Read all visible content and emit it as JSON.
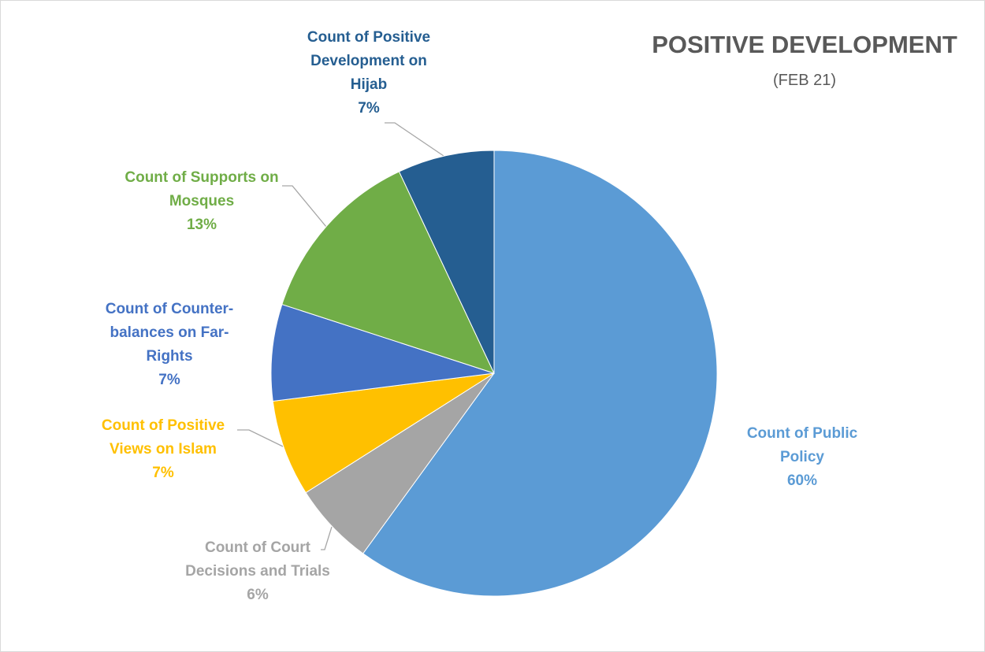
{
  "chart_data": {
    "type": "pie",
    "title": "POSITIVE DEVELOPMENT",
    "subtitle": "(FEB 21)",
    "categories": [
      "Count of Public Policy",
      "Count of Court Decisions and Trials",
      "Count of Positive Views on Islam",
      "Count of Counter-balances on Far-Rights",
      "Count of Supports on Mosques",
      "Count of Positive Development on Hijab"
    ],
    "values": [
      60,
      6,
      7,
      7,
      13,
      7
    ],
    "value_labels": [
      "60%",
      "6%",
      "7%",
      "7%",
      "13%",
      "7%"
    ],
    "colors": [
      "#5b9bd5",
      "#a5a5a5",
      "#ffc000",
      "#4472c4",
      "#70ad47",
      "#255e91"
    ]
  }
}
